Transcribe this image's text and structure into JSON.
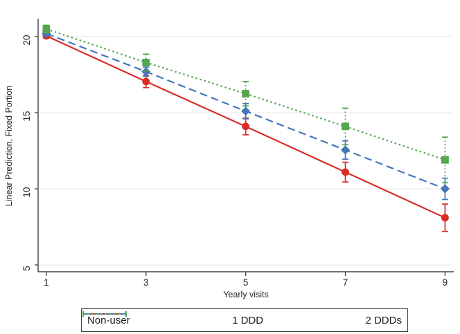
{
  "chart_data": {
    "type": "line",
    "title": "",
    "xlabel": "Yearly visits",
    "ylabel": "Linear Prediction, Fixed Portion",
    "x": [
      1,
      3,
      5,
      7,
      9
    ],
    "xticks": [
      1,
      3,
      5,
      7,
      9
    ],
    "yticks": [
      5,
      10,
      15,
      20
    ],
    "xlim": [
      0.835,
      9.175
    ],
    "ylim": [
      4.55,
      21.18
    ],
    "grid": "horizontal-only",
    "legend_position": "bottom-center-boxed",
    "series": [
      {
        "name": "Non-user",
        "color": "#d92c25",
        "marker": "circle",
        "line_style": "solid",
        "values": [
          20.05,
          17.05,
          14.1,
          11.1,
          8.1
        ],
        "ci_halfwidth": [
          0.15,
          0.4,
          0.55,
          0.65,
          0.9
        ]
      },
      {
        "name": "1 DDD",
        "color": "#4377b7",
        "marker": "diamond",
        "line_style": "dashed",
        "values": [
          20.2,
          17.7,
          15.1,
          12.55,
          10.0
        ],
        "ci_halfwidth": [
          0.12,
          0.3,
          0.5,
          0.6,
          0.7
        ]
      },
      {
        "name": "2 DDDs",
        "color": "#55a551",
        "marker": "square",
        "line_style": "dotted",
        "values": [
          20.5,
          18.3,
          16.25,
          14.1,
          11.9
        ],
        "ci_halfwidth": [
          0.25,
          0.55,
          0.8,
          1.2,
          1.5
        ]
      }
    ],
    "colors": {
      "gridline": "#eaeaea",
      "axis": "#404040",
      "text": "#262626",
      "background": "#ffffff"
    }
  }
}
